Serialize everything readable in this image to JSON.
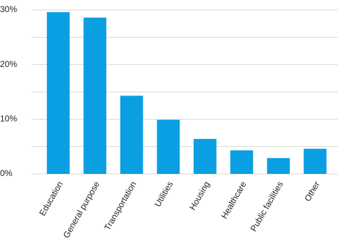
{
  "chart_data": {
    "type": "bar",
    "categories": [
      "Education",
      "General purpose",
      "Transportation",
      "Utilities",
      "Housing",
      "Healthcare",
      "Public facilities",
      "Other"
    ],
    "values": [
      29.6,
      28.6,
      14.3,
      9.9,
      6.4,
      4.3,
      2.9,
      4.6
    ],
    "color": "#0a9fe2",
    "ylim": [
      0,
      30
    ],
    "yticks": [
      {
        "value": 0,
        "label": "0%"
      },
      {
        "value": 10,
        "label": "10%"
      },
      {
        "value": 20,
        "label": "20%"
      },
      {
        "value": 30,
        "label": "30%"
      }
    ],
    "minor_yticks": [
      5,
      15,
      25
    ],
    "grid": true
  }
}
